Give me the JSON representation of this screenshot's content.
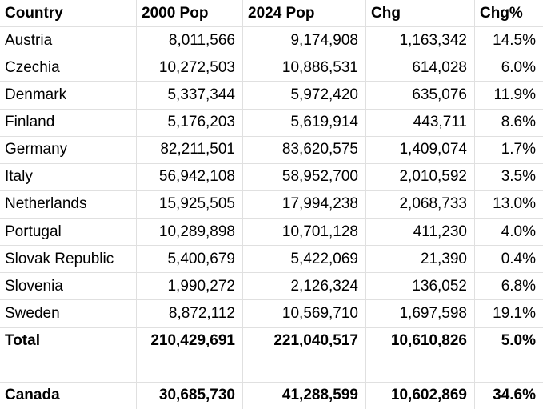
{
  "table": {
    "columns": [
      {
        "label": "Country"
      },
      {
        "label": "2000 Pop"
      },
      {
        "label": "2024 Pop"
      },
      {
        "label": "Chg"
      },
      {
        "label": "Chg%"
      }
    ],
    "rows": [
      {
        "country": "Austria",
        "pop_2000": "8,011,566",
        "pop_2024": "9,174,908",
        "chg": "1,163,342",
        "chg_pct": "14.5%",
        "bold": false
      },
      {
        "country": "Czechia",
        "pop_2000": "10,272,503",
        "pop_2024": "10,886,531",
        "chg": "614,028",
        "chg_pct": "6.0%",
        "bold": false
      },
      {
        "country": "Denmark",
        "pop_2000": "5,337,344",
        "pop_2024": "5,972,420",
        "chg": "635,076",
        "chg_pct": "11.9%",
        "bold": false
      },
      {
        "country": "Finland",
        "pop_2000": "5,176,203",
        "pop_2024": "5,619,914",
        "chg": "443,711",
        "chg_pct": "8.6%",
        "bold": false
      },
      {
        "country": "Germany",
        "pop_2000": "82,211,501",
        "pop_2024": "83,620,575",
        "chg": "1,409,074",
        "chg_pct": "1.7%",
        "bold": false
      },
      {
        "country": "Italy",
        "pop_2000": "56,942,108",
        "pop_2024": "58,952,700",
        "chg": "2,010,592",
        "chg_pct": "3.5%",
        "bold": false
      },
      {
        "country": "Netherlands",
        "pop_2000": "15,925,505",
        "pop_2024": "17,994,238",
        "chg": "2,068,733",
        "chg_pct": "13.0%",
        "bold": false
      },
      {
        "country": "Portugal",
        "pop_2000": "10,289,898",
        "pop_2024": "10,701,128",
        "chg": "411,230",
        "chg_pct": "4.0%",
        "bold": false
      },
      {
        "country": "Slovak Republic",
        "pop_2000": "5,400,679",
        "pop_2024": "5,422,069",
        "chg": "21,390",
        "chg_pct": "0.4%",
        "bold": false
      },
      {
        "country": "Slovenia",
        "pop_2000": "1,990,272",
        "pop_2024": "2,126,324",
        "chg": "136,052",
        "chg_pct": "6.8%",
        "bold": false
      },
      {
        "country": "Sweden",
        "pop_2000": "8,872,112",
        "pop_2024": "10,569,710",
        "chg": "1,697,598",
        "chg_pct": "19.1%",
        "bold": false
      },
      {
        "country": "Total",
        "pop_2000": "210,429,691",
        "pop_2024": "221,040,517",
        "chg": "10,610,826",
        "chg_pct": "5.0%",
        "bold": true
      },
      {
        "country": "",
        "pop_2000": "",
        "pop_2024": "",
        "chg": "",
        "chg_pct": "",
        "bold": false
      },
      {
        "country": "Canada",
        "pop_2000": "30,685,730",
        "pop_2024": "41,288,599",
        "chg": "10,602,869",
        "chg_pct": "34.6%",
        "bold": true
      }
    ]
  },
  "colors": {
    "grid_line": "#e0e0e0",
    "background": "#ffffff",
    "text": "#000000"
  }
}
